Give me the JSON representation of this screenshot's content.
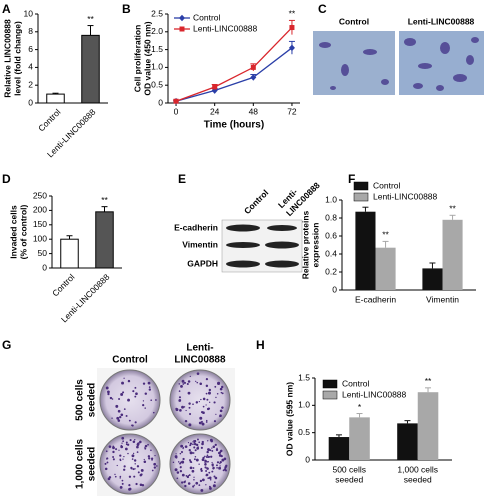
{
  "panel_letters": [
    "A",
    "B",
    "C",
    "D",
    "E",
    "F",
    "G",
    "H"
  ],
  "images": {
    "C": {
      "columns": [
        "Control",
        "Lenti-LINC00888"
      ]
    },
    "E": {
      "columns": [
        [
          "Control"
        ],
        [
          "Lenti-",
          "LINC00888"
        ]
      ],
      "rows": [
        "E-cadherin",
        "Vimentin",
        "GAPDH"
      ]
    },
    "G": {
      "columns": [
        [
          "Control"
        ],
        [
          "Lenti-",
          "LINC00888"
        ]
      ],
      "rows": [
        [
          "500 cells",
          "seeded"
        ],
        [
          "1,000 cells",
          "seeded"
        ]
      ]
    }
  },
  "chart_data": [
    {
      "type": "bar",
      "ylabel": [
        "Relative LINC00888",
        "level (fold change)"
      ],
      "categories": [
        [
          "Control"
        ],
        [
          "Lenti-LINC00888"
        ]
      ],
      "values": [
        1,
        7.6
      ],
      "errors": [
        0.1,
        1.1
      ],
      "colors": [
        "#ffffff",
        "#555555"
      ],
      "annotations": [
        null,
        "**"
      ],
      "ylim": [
        0,
        10
      ],
      "yticks": [
        0,
        2,
        4,
        6,
        8,
        10
      ],
      "rotate_labels": true
    },
    {
      "type": "line",
      "xlabel": "Time (hours)",
      "ylabel": [
        "Cell proliferation",
        "OD value (450 nm)"
      ],
      "x": [
        0,
        24,
        48,
        72
      ],
      "series": [
        {
          "name": "Control",
          "color": "#2b3fa8",
          "marker": "diamond",
          "values": [
            0.05,
            0.35,
            0.72,
            1.55
          ],
          "errors": [
            0.03,
            0.06,
            0.08,
            0.18
          ]
        },
        {
          "name": "Lenti-LINC00888",
          "color": "#d9262c",
          "marker": "square",
          "values": [
            0.05,
            0.45,
            1.0,
            2.12
          ],
          "errors": [
            0.03,
            0.07,
            0.1,
            0.2
          ],
          "annotations": [
            null,
            null,
            null,
            "**"
          ]
        }
      ],
      "xlim": [
        -5,
        77
      ],
      "xticks": [
        0,
        24,
        48,
        72
      ],
      "ylim": [
        0,
        2.5
      ],
      "yticks": [
        0,
        0.5,
        {
          "value": 1,
          "label": "1.0"
        },
        1.5,
        {
          "value": 2,
          "label": "2.0"
        },
        2.5
      ]
    },
    {
      "type": "bar",
      "ylabel": [
        "Invaded cells",
        "(% of control)"
      ],
      "categories": [
        [
          "Control"
        ],
        [
          "Lenti-LINC00888"
        ]
      ],
      "values": [
        100,
        195
      ],
      "errors": [
        12,
        18
      ],
      "colors": [
        "#ffffff",
        "#555555"
      ],
      "annotations": [
        null,
        "**"
      ],
      "ylim": [
        0,
        250
      ],
      "yticks": [
        0,
        50,
        100,
        150,
        200,
        250
      ],
      "rotate_labels": true
    },
    {
      "type": "grouped-bar",
      "ylabel": [
        "Relative proteins",
        "expression"
      ],
      "categories": [
        [
          "E-cadherin"
        ],
        [
          "Vimentin"
        ]
      ],
      "series": [
        {
          "name": "Control",
          "color": "#111111",
          "values": [
            0.87,
            0.24
          ],
          "errors": [
            0.05,
            0.06
          ]
        },
        {
          "name": "Lenti-LINC00888",
          "color": "#a8a8a8",
          "values": [
            0.47,
            0.78
          ],
          "errors": [
            0.07,
            0.05
          ],
          "annotations": [
            "**",
            "**"
          ]
        }
      ],
      "ylim": [
        0,
        1
      ],
      "yticks": [
        0,
        0.2,
        0.4,
        0.6,
        0.8,
        {
          "value": 1,
          "label": "1.0"
        }
      ],
      "legend": "top"
    },
    {
      "type": "grouped-bar",
      "ylabel": [
        "OD value (595 nm)"
      ],
      "categories": [
        [
          "500 cells",
          "seeded"
        ],
        [
          "1,000 cells",
          "seeded"
        ]
      ],
      "series": [
        {
          "name": "Control",
          "color": "#111111",
          "values": [
            0.42,
            0.67
          ],
          "errors": [
            0.04,
            0.05
          ]
        },
        {
          "name": "Lenti-LINC00888",
          "color": "#a8a8a8",
          "values": [
            0.78,
            1.24
          ],
          "errors": [
            0.07,
            0.08
          ],
          "annotations": [
            "*",
            "**"
          ]
        }
      ],
      "ylim": [
        0,
        1.5
      ],
      "yticks": [
        0,
        0.5,
        {
          "value": 1,
          "label": "1.0"
        },
        1.5
      ],
      "legend": "inside"
    }
  ]
}
